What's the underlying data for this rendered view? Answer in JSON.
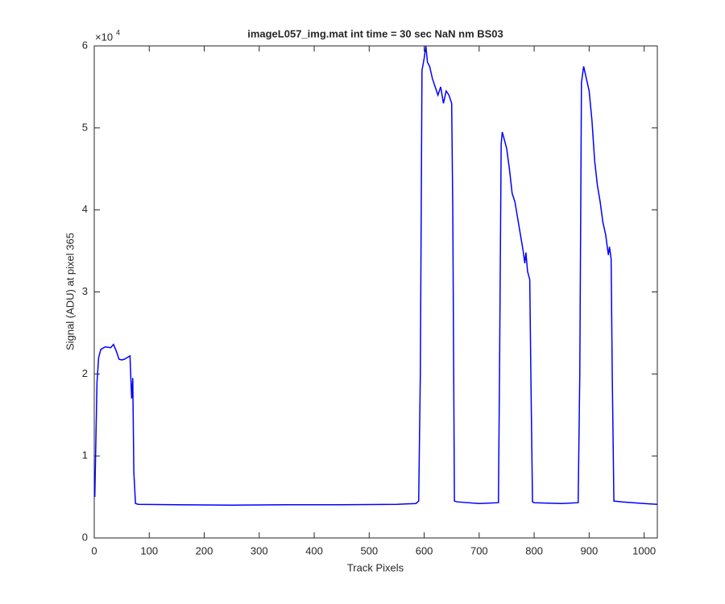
{
  "chart_data": {
    "type": "line",
    "title": "imageL057_img.mat int time = 30 sec  NaN nm BS03",
    "xlabel": "Track Pixels",
    "ylabel": "Signal (ADU) at pixel 365",
    "exponent_label": "×10",
    "exponent_power": "4",
    "xlim": [
      0,
      1024
    ],
    "ylim": [
      0,
      60000
    ],
    "xticks": [
      0,
      100,
      200,
      300,
      400,
      500,
      600,
      700,
      800,
      900,
      1000
    ],
    "yticks": [
      0,
      {
        "value": 10000,
        "label": "1"
      },
      {
        "value": 20000,
        "label": "2"
      },
      {
        "value": 30000,
        "label": "3"
      },
      {
        "value": 40000,
        "label": "4"
      },
      {
        "value": 50000,
        "label": "5"
      },
      {
        "value": 60000,
        "label": "6"
      }
    ],
    "series": [
      {
        "color": "#0000ff",
        "x": [
          1,
          3,
          5,
          8,
          12,
          20,
          30,
          35,
          40,
          45,
          50,
          55,
          60,
          65,
          68,
          70,
          72,
          75,
          80,
          150,
          250,
          350,
          450,
          550,
          585,
          590,
          593,
          596,
          600,
          603,
          606,
          610,
          615,
          620,
          625,
          630,
          635,
          640,
          645,
          650,
          652,
          655,
          660,
          700,
          735,
          737,
          740,
          742,
          746,
          750,
          755,
          760,
          765,
          770,
          775,
          780,
          783,
          785,
          788,
          792,
          794,
          797,
          800,
          850,
          880,
          883,
          886,
          890,
          895,
          900,
          905,
          910,
          915,
          920,
          925,
          930,
          935,
          937,
          940,
          942,
          945,
          960,
          1000,
          1024
        ],
        "values": [
          5000,
          12000,
          19000,
          22000,
          23000,
          23300,
          23200,
          23600,
          22800,
          21800,
          21700,
          21800,
          22000,
          22200,
          17000,
          19500,
          8000,
          4200,
          4100,
          4050,
          4000,
          4050,
          4050,
          4100,
          4200,
          4500,
          20000,
          57000,
          58500,
          60000,
          58000,
          57500,
          56000,
          55000,
          54000,
          55000,
          53000,
          54500,
          54000,
          53000,
          40000,
          4500,
          4400,
          4200,
          4300,
          20000,
          48000,
          49500,
          48500,
          47500,
          45000,
          42000,
          41000,
          39000,
          37000,
          35000,
          33500,
          34800,
          32500,
          31500,
          20000,
          4400,
          4300,
          4200,
          4300,
          20000,
          55500,
          57500,
          56000,
          54500,
          51000,
          46000,
          43000,
          41000,
          38500,
          37000,
          34500,
          35500,
          34000,
          20000,
          4500,
          4400,
          4200,
          4100
        ]
      }
    ]
  }
}
